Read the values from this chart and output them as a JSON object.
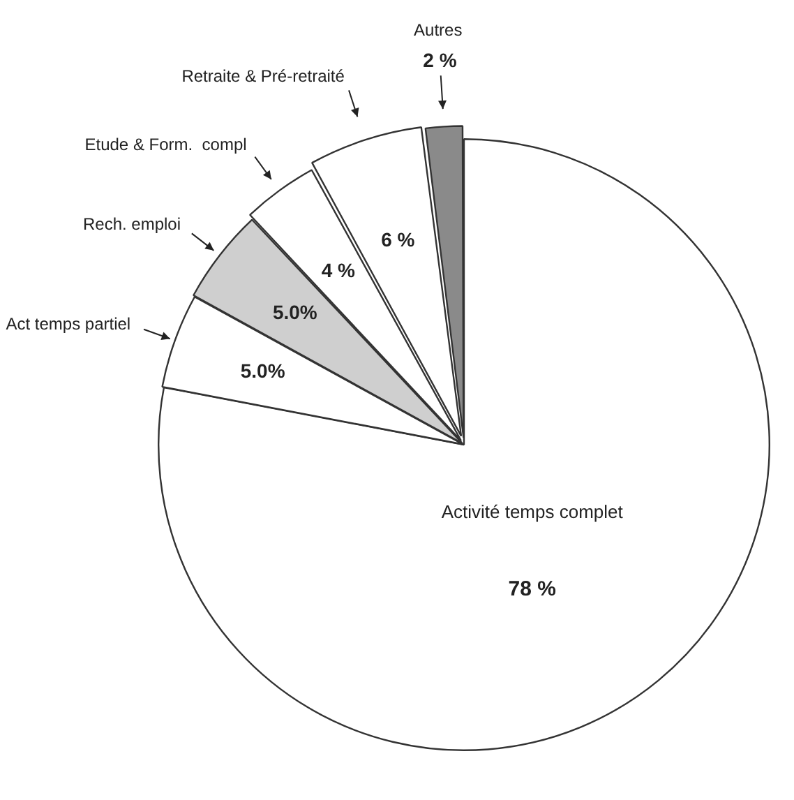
{
  "chart_data": {
    "type": "pie",
    "categories": [
      "Activité temps complet",
      "Act temps partiel",
      "Rech. emploi",
      "Etude & Form.  compl",
      "Retraite & Pré-retraité",
      "Autres"
    ],
    "values": [
      78,
      5.0,
      5.0,
      4,
      6,
      2
    ],
    "value_labels": [
      "78 %",
      "5.0%",
      "5.0%",
      "4 %",
      "6 %",
      "2 %"
    ],
    "colors": [
      "#ffffff",
      "#ffffff",
      "#cfcfcf",
      "#ffffff",
      "#ffffff",
      "#8a8a8a"
    ],
    "legend": false
  }
}
